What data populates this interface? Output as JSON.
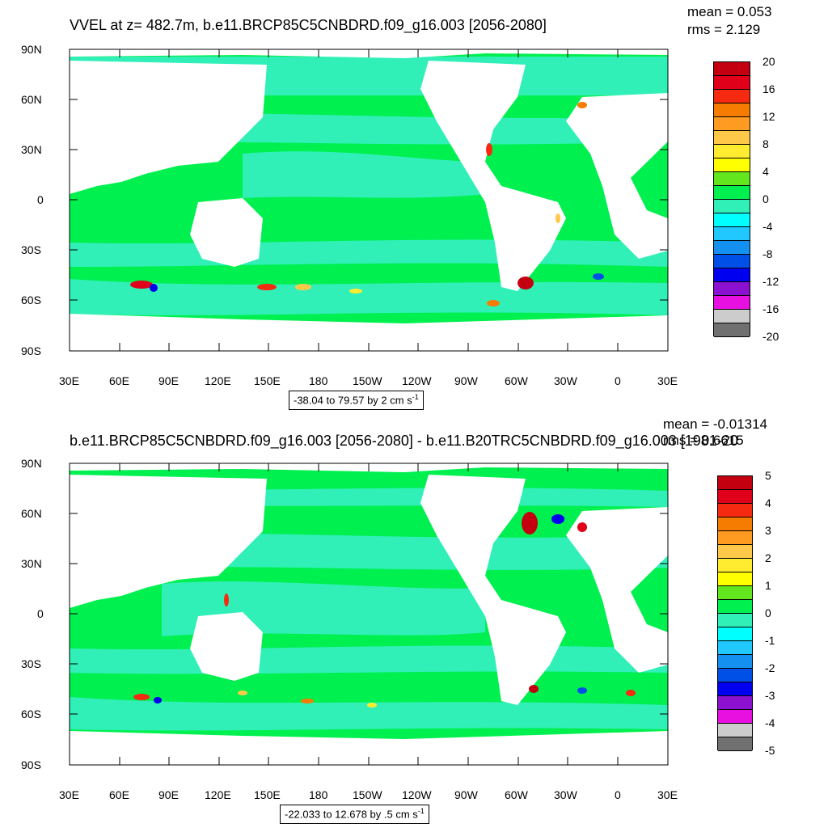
{
  "panels": [
    {
      "title": "VVEL at z= 482.7m, b.e11.BRCP85C5CNBDRD.f09_g16.003 [2056-2080]",
      "mean_label": "mean = 0.053",
      "rms_label": "rms = 2.129",
      "range_text": "-38.04 to 79.57 by 2 cm s",
      "range_unit_exp": "-1",
      "colorbar_labels": [
        "20",
        "16",
        "12",
        "8",
        "4",
        "0",
        "-4",
        "-8",
        "-12",
        "-16",
        "-20"
      ],
      "colorbar_colors": [
        "#c40010",
        "#e0001a",
        "#f52a10",
        "#f57c00",
        "#ff9b20",
        "#ffc848",
        "#ffeb30",
        "#ffff00",
        "#64e61e",
        "#00f050",
        "#30f0b8",
        "#00ffff",
        "#20c8ff",
        "#1490f0",
        "#0050e8",
        "#0000f0",
        "#8c10d0",
        "#e810e0",
        "#cccccc",
        "#707070"
      ]
    },
    {
      "title": "b.e11.BRCP85C5CNBDRD.f09_g16.003 [2056-2080] - b.e11.B20TRC5CNBDRD.f09_g16.003 [1981-20",
      "mean_label": "mean = -0.01314",
      "rms_label": "rms = 0.6615",
      "range_text": "-22.033 to 12.678 by .5 cm s",
      "range_unit_exp": "-1",
      "colorbar_labels": [
        "5",
        "4",
        "3",
        "2",
        "1",
        "0",
        "-1",
        "-2",
        "-3",
        "-4",
        "-5"
      ],
      "colorbar_colors": [
        "#c40010",
        "#e0001a",
        "#f52a10",
        "#f57c00",
        "#ff9b20",
        "#ffc848",
        "#ffeb30",
        "#ffff00",
        "#64e61e",
        "#00f050",
        "#30f0b8",
        "#00ffff",
        "#20c8ff",
        "#1490f0",
        "#0050e8",
        "#0000f0",
        "#8c10d0",
        "#e810e0",
        "#cccccc",
        "#707070"
      ]
    }
  ],
  "lat_labels": [
    "90N",
    "60N",
    "30N",
    "0",
    "30S",
    "60S",
    "90S"
  ],
  "lon_labels": [
    "30E",
    "60E",
    "90E",
    "120E",
    "150E",
    "180",
    "150W",
    "120W",
    "90W",
    "60W",
    "30W",
    "0",
    "30E"
  ],
  "colors": {
    "land": "#ffffff",
    "ocean_green": "#00f050",
    "ocean_cyan": "#30f0b8",
    "ocean_light": "#00ffd8"
  }
}
